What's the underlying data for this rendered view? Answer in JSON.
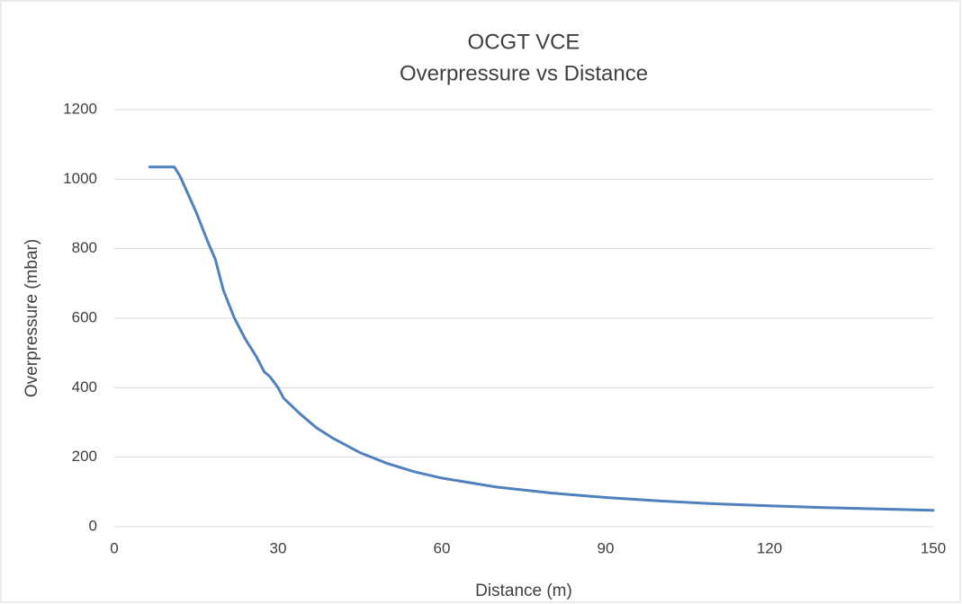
{
  "chart_data": {
    "type": "line",
    "title": "OCGT VCE",
    "subtitle": "Overpressure vs Distance",
    "x_label": "Distance (m)",
    "y_label": "Overpressure (mbar)",
    "x": [
      6.5,
      11,
      12,
      13,
      15,
      17,
      18.5,
      20,
      22,
      24,
      26,
      27.5,
      28.5,
      30,
      31,
      34,
      37,
      40,
      45,
      50,
      55,
      60,
      70,
      80,
      90,
      100,
      110,
      120,
      130,
      140,
      150
    ],
    "series": [
      {
        "name": "Overpressure",
        "color": "#4f81bd",
        "values": [
          1035,
          1035,
          1010,
          975,
          905,
          825,
          770,
          680,
          600,
          540,
          490,
          445,
          432,
          400,
          370,
          325,
          285,
          255,
          213,
          182,
          158,
          140,
          114,
          97,
          84,
          74,
          66,
          60,
          55,
          51,
          47
        ]
      }
    ],
    "xlim": [
      0,
      150
    ],
    "xticks": [
      0,
      30,
      60,
      90,
      120,
      150
    ],
    "ylim": [
      0,
      1200
    ],
    "yticks": [
      0,
      200,
      400,
      600,
      800,
      1000,
      1200
    ],
    "grid": true,
    "legend": false
  }
}
